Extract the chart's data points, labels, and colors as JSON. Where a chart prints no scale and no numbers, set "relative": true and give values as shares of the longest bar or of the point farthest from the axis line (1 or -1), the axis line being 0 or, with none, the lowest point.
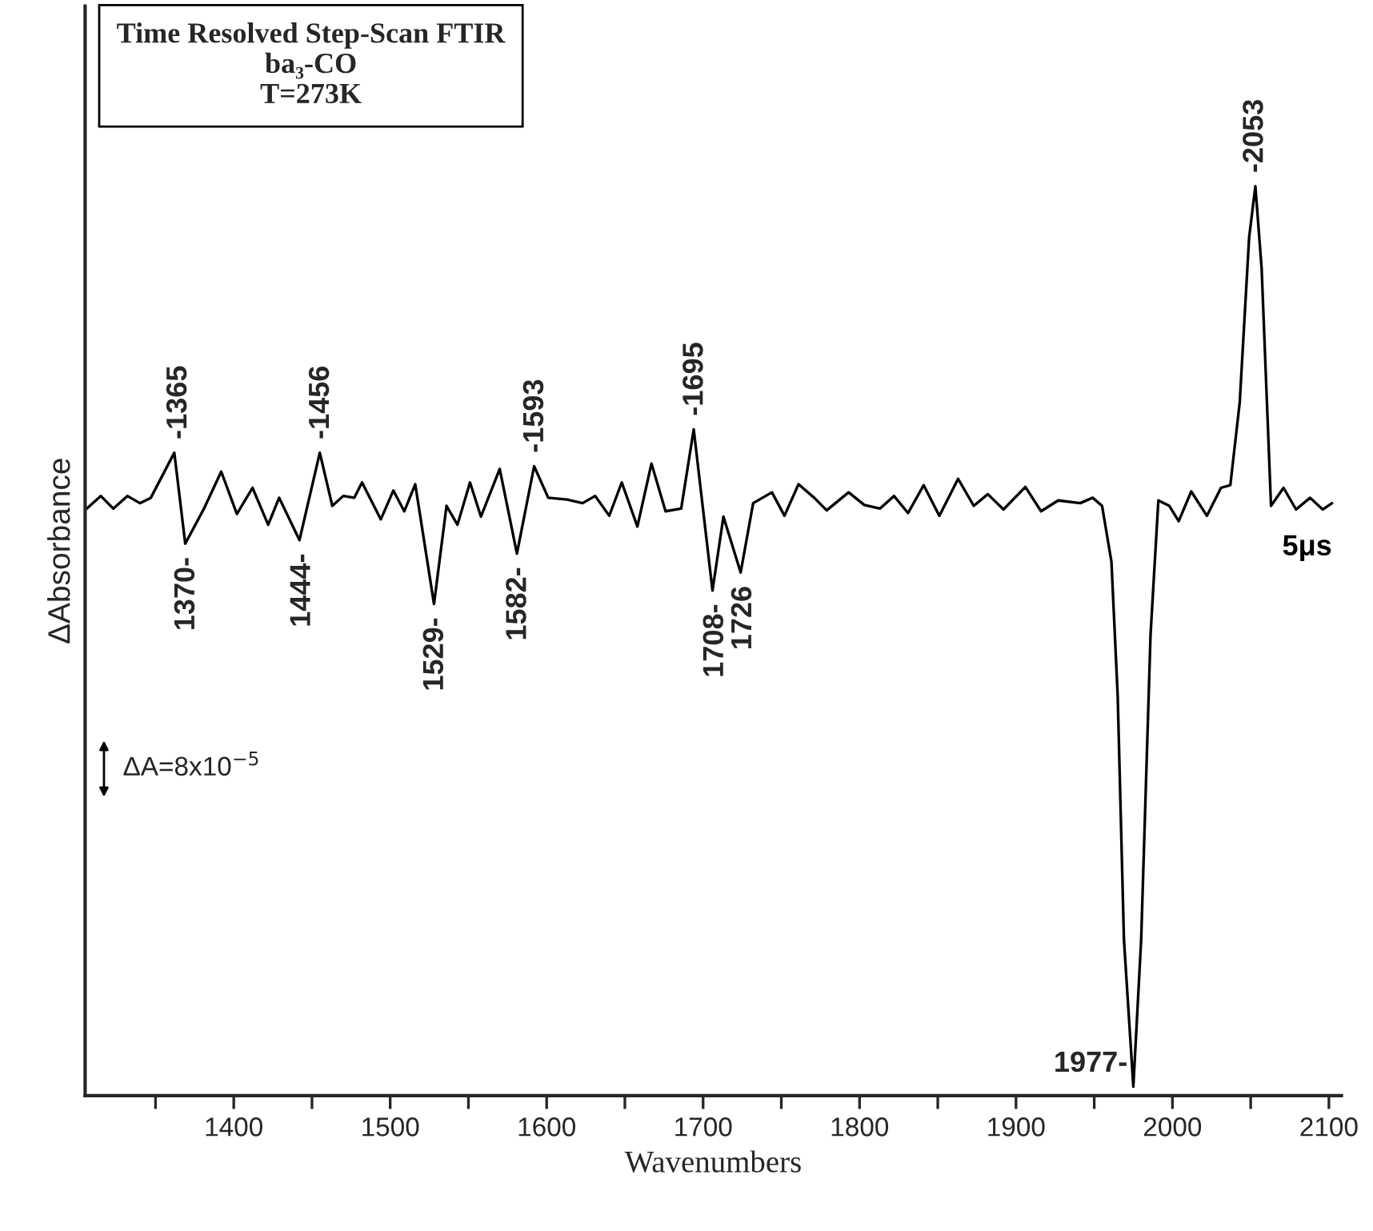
{
  "chart_data": {
    "type": "line",
    "title": "Time Resolved Step-Scan FTIR",
    "subtitle": "ba₃-CO\nT=273K",
    "xlabel": "Wavenumbers",
    "ylabel": "ΔAbsorbance",
    "relative": true,
    "xlim": [
      1305,
      2108
    ],
    "xticks": [
      {
        "value": 1350,
        "label": null
      },
      1400,
      {
        "value": 1450,
        "label": null
      },
      1500,
      {
        "value": 1550,
        "label": null
      },
      1600,
      {
        "value": 1650,
        "label": null
      },
      1700,
      {
        "value": 1750,
        "label": null
      },
      1800,
      {
        "value": 1850,
        "label": null
      },
      1900,
      {
        "value": 1950,
        "label": null
      },
      2000,
      {
        "value": 2050,
        "label": null
      },
      2100
    ],
    "series": [
      {
        "name": "5μs",
        "color": "#000000",
        "x": [
          1306,
          1315,
          1323,
          1332,
          1340,
          1347,
          1362,
          1369,
          1381,
          1392,
          1402,
          1412,
          1422,
          1429,
          1442,
          1455,
          1463,
          1470,
          1477,
          1482,
          1494,
          1502,
          1509,
          1516,
          1528,
          1536,
          1543,
          1551,
          1558,
          1570,
          1581,
          1592,
          1601,
          1613,
          1623,
          1631,
          1640,
          1648,
          1658,
          1667,
          1676,
          1686,
          1694,
          1706,
          1713,
          1724,
          1732,
          1744,
          1752,
          1761,
          1771,
          1779,
          1793,
          1803,
          1813,
          1822,
          1831,
          1841,
          1851,
          1863,
          1873,
          1882,
          1892,
          1906,
          1916,
          1927,
          1941,
          1949,
          1955,
          1961,
          1965,
          1969,
          1975,
          1980,
          1986,
          1991,
          1998,
          2004,
          2012,
          2022,
          2031,
          2037,
          2043,
          2049,
          2053,
          2057,
          2063,
          2071,
          2079,
          2088,
          2096,
          2102
        ],
        "values": [
          0.642,
          0.656,
          0.642,
          0.656,
          0.648,
          0.654,
          0.704,
          0.603,
          0.642,
          0.683,
          0.636,
          0.665,
          0.624,
          0.654,
          0.607,
          0.704,
          0.645,
          0.656,
          0.654,
          0.671,
          0.63,
          0.662,
          0.639,
          0.669,
          0.536,
          0.645,
          0.624,
          0.671,
          0.633,
          0.686,
          0.592,
          0.689,
          0.654,
          0.652,
          0.648,
          0.656,
          0.634,
          0.671,
          0.622,
          0.692,
          0.639,
          0.642,
          0.73,
          0.551,
          0.633,
          0.571,
          0.648,
          0.66,
          0.634,
          0.669,
          0.654,
          0.64,
          0.66,
          0.646,
          0.642,
          0.656,
          0.637,
          0.668,
          0.634,
          0.675,
          0.645,
          0.658,
          0.641,
          0.666,
          0.639,
          0.651,
          0.648,
          0.654,
          0.645,
          0.583,
          0.434,
          0.163,
          0,
          0.163,
          0.502,
          0.651,
          0.645,
          0.628,
          0.661,
          0.634,
          0.665,
          0.668,
          0.76,
          0.943,
          1.0,
          0.909,
          0.645,
          0.665,
          0.641,
          0.654,
          0.641,
          0.648
        ]
      }
    ],
    "annotations": [
      {
        "text": "-1365",
        "x": 1365,
        "y": 0.704
      },
      {
        "text": "1370-",
        "x": 1370,
        "y": 0.603
      },
      {
        "text": "1444-",
        "x": 1444,
        "y": 0.607
      },
      {
        "text": "-1456",
        "x": 1456,
        "y": 0.704
      },
      {
        "text": "1529-",
        "x": 1529,
        "y": 0.536
      },
      {
        "text": "1582-",
        "x": 1582,
        "y": 0.592
      },
      {
        "text": "-1593",
        "x": 1593,
        "y": 0.689
      },
      {
        "text": "-1695",
        "x": 1695,
        "y": 0.73
      },
      {
        "text": "1708-",
        "x": 1708,
        "y": 0.551
      },
      {
        "text": "1726",
        "x": 1726,
        "y": 0.571
      },
      {
        "text": "1977-",
        "x": 1977,
        "y": 0
      },
      {
        "text": "-2053",
        "x": 2053,
        "y": 1.0
      },
      "ΔA=8x10$^{−5}$"
    ]
  }
}
